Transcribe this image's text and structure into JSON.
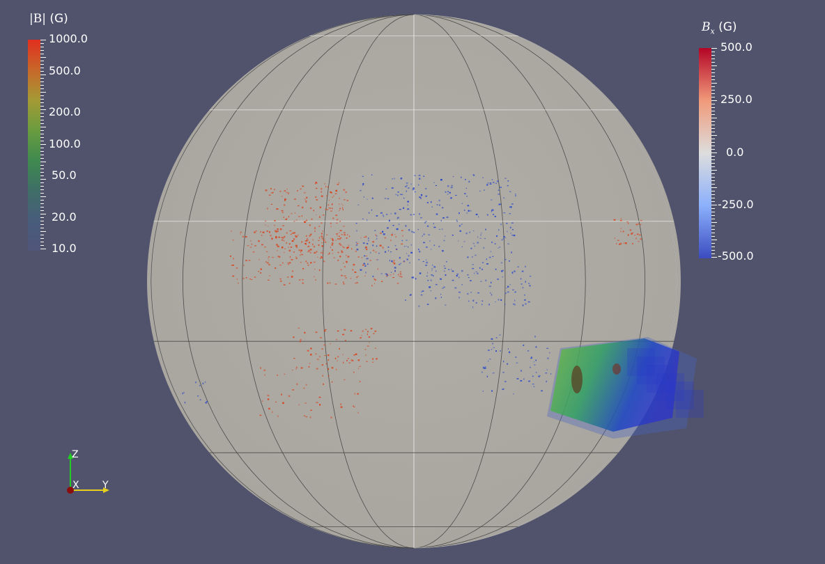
{
  "colors": {
    "background": "#51536d",
    "sphere": "#aeaba4",
    "positive_field": "#d8431e",
    "negative_field": "#2d49c9"
  },
  "legend_magnitude": {
    "title_symbol": "|B|",
    "title_unit": "(G)",
    "scale": "log",
    "labels": [
      "1000.0",
      "500.0",
      "200.0",
      "100.0",
      "50.0",
      "20.0",
      "10.0"
    ],
    "colormap": [
      "#e12f1e",
      "#c8672a",
      "#a49a34",
      "#6a9c3f",
      "#3f8a4f",
      "#3f6e66",
      "#485c7c",
      "#50557a"
    ]
  },
  "legend_bx": {
    "title_symbol": "B",
    "title_sub": "x",
    "title_unit": "(G)",
    "labels": [
      "500.0",
      "250.0",
      "0.0",
      "-250.0",
      "-500.0"
    ],
    "colormap": [
      "#b40426",
      "#f09a7a",
      "#dddddd",
      "#8cb0fc",
      "#3b4cc0"
    ]
  },
  "axes": {
    "z_label": "Z",
    "x_label": "X",
    "y_label": "Y",
    "z_color": "#22cc22",
    "y_color": "#e3cf1c",
    "x_color": "#8a0e0e"
  }
}
